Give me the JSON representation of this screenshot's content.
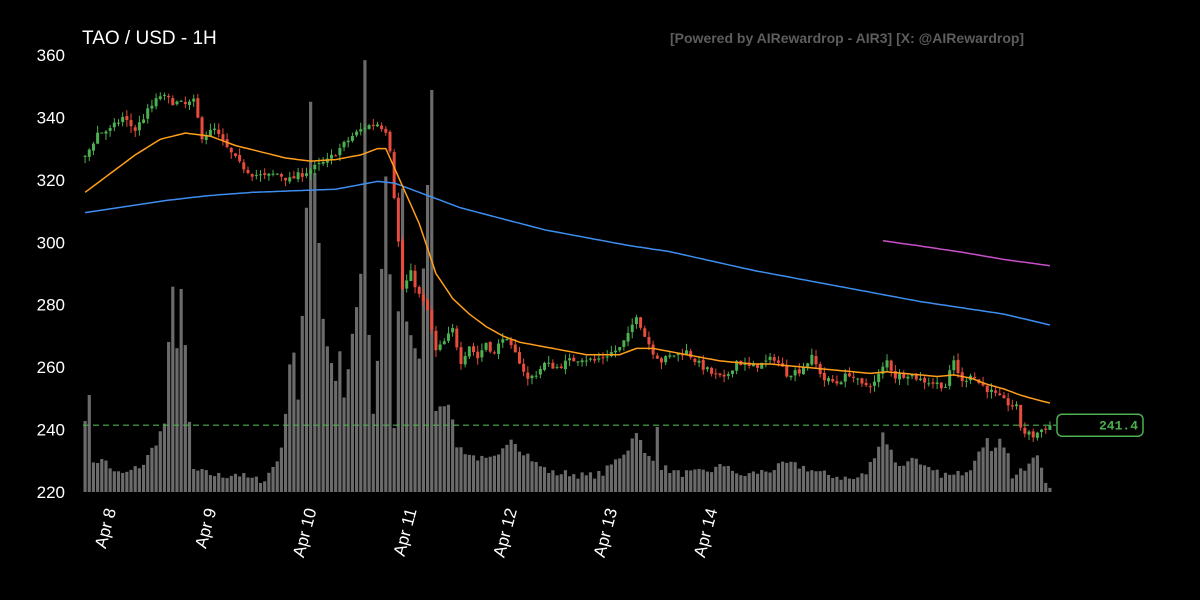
{
  "header": {
    "title": "TAO / USD - 1H",
    "credit": "[Powered by AIRewardrop - AIR3] [X: @AIRewardrop]"
  },
  "chart_data": {
    "type": "candlestick",
    "title": "TAO / USD - 1H",
    "ylim": [
      220,
      360
    ],
    "y_ticks": [
      220,
      240,
      260,
      280,
      300,
      320,
      340,
      360
    ],
    "x_ticks": [
      "Apr 8",
      "Apr 9",
      "Apr 10",
      "Apr 11",
      "Apr 12",
      "Apr 13",
      "Apr 14"
    ],
    "hours_total": 168,
    "current_price": 241.4,
    "current_price_label": "241.4",
    "colors": {
      "up": "#4caf50",
      "down": "#e74c3c",
      "volume": "#6b6b6b",
      "ema_fast": "#ff9f1c",
      "ema_slow": "#3d8ef0",
      "ema_long": "#c74fc7",
      "price_line": "#4caf50"
    },
    "price_anchors": [
      [
        0,
        327
      ],
      [
        3,
        335
      ],
      [
        6,
        336
      ],
      [
        9,
        340
      ],
      [
        12,
        336
      ],
      [
        15,
        342
      ],
      [
        18,
        347
      ],
      [
        21,
        345
      ],
      [
        24,
        344
      ],
      [
        26,
        345
      ],
      [
        28,
        334
      ],
      [
        31,
        336
      ],
      [
        34,
        330
      ],
      [
        37,
        325
      ],
      [
        40,
        322
      ],
      [
        43,
        321
      ],
      [
        46,
        322
      ],
      [
        49,
        320
      ],
      [
        52,
        322
      ],
      [
        55,
        324
      ],
      [
        58,
        326
      ],
      [
        61,
        330
      ],
      [
        64,
        334
      ],
      [
        67,
        337
      ],
      [
        70,
        338
      ],
      [
        72,
        336
      ],
      [
        73,
        330
      ],
      [
        74,
        315
      ],
      [
        75,
        300
      ],
      [
        76,
        285
      ],
      [
        78,
        290
      ],
      [
        80,
        283
      ],
      [
        82,
        278
      ],
      [
        84,
        265
      ],
      [
        86,
        268
      ],
      [
        88,
        272
      ],
      [
        90,
        262
      ],
      [
        92,
        267
      ],
      [
        94,
        263
      ],
      [
        96,
        268
      ],
      [
        98,
        264
      ],
      [
        100,
        270
      ],
      [
        102,
        266
      ],
      [
        104,
        262
      ],
      [
        106,
        256
      ],
      [
        108,
        258
      ],
      [
        110,
        261
      ],
      [
        113,
        260
      ],
      [
        116,
        262
      ],
      [
        119,
        263
      ],
      [
        122,
        262
      ],
      [
        125,
        264
      ],
      [
        128,
        266
      ],
      [
        130,
        270
      ],
      [
        132,
        277
      ],
      [
        134,
        270
      ],
      [
        136,
        265
      ],
      [
        138,
        262
      ],
      [
        141,
        264
      ],
      [
        144,
        265
      ],
      [
        147,
        261
      ],
      [
        150,
        258
      ],
      [
        153,
        256
      ],
      [
        156,
        262
      ],
      [
        159,
        260
      ],
      [
        162,
        261
      ],
      [
        165,
        263
      ],
      [
        168,
        258
      ],
      [
        171,
        259
      ],
      [
        174,
        263
      ],
      [
        177,
        256
      ],
      [
        180,
        255
      ],
      [
        183,
        258
      ],
      [
        186,
        254
      ],
      [
        189,
        255
      ],
      [
        192,
        262
      ],
      [
        194,
        257
      ],
      [
        197,
        258
      ],
      [
        200,
        256
      ],
      [
        203,
        255
      ],
      [
        206,
        254
      ],
      [
        208,
        262
      ],
      [
        210,
        255
      ],
      [
        212,
        258
      ],
      [
        214,
        255
      ],
      [
        217,
        252
      ],
      [
        220,
        249
      ],
      [
        223,
        247
      ],
      [
        224,
        241
      ],
      [
        225,
        239
      ],
      [
        227,
        238
      ],
      [
        229,
        240
      ],
      [
        231,
        241.4
      ]
    ],
    "volume_anchors": [
      [
        0,
        244
      ],
      [
        1,
        250
      ],
      [
        2,
        230
      ],
      [
        5,
        230
      ],
      [
        7,
        226
      ],
      [
        10,
        226
      ],
      [
        14,
        229
      ],
      [
        17,
        236
      ],
      [
        19,
        242
      ],
      [
        20,
        267
      ],
      [
        21,
        285
      ],
      [
        22,
        267
      ],
      [
        23,
        285
      ],
      [
        24,
        266
      ],
      [
        25,
        242
      ],
      [
        26,
        227
      ],
      [
        29,
        226
      ],
      [
        33,
        225
      ],
      [
        36,
        226
      ],
      [
        40,
        224
      ],
      [
        43,
        224
      ],
      [
        46,
        230
      ],
      [
        47,
        235
      ],
      [
        48,
        244
      ],
      [
        49,
        262
      ],
      [
        50,
        265
      ],
      [
        51,
        250
      ],
      [
        52,
        276
      ],
      [
        53,
        310
      ],
      [
        54,
        345
      ],
      [
        55,
        323
      ],
      [
        56,
        300
      ],
      [
        57,
        276
      ],
      [
        58,
        267
      ],
      [
        60,
        256
      ],
      [
        61,
        265
      ],
      [
        62,
        250
      ],
      [
        63,
        260
      ],
      [
        66,
        289
      ],
      [
        67,
        358
      ],
      [
        68,
        270
      ],
      [
        69,
        245
      ],
      [
        70,
        262
      ],
      [
        72,
        320
      ],
      [
        73,
        290
      ],
      [
        74,
        240
      ],
      [
        76,
        317
      ],
      [
        77,
        275
      ],
      [
        80,
        262
      ],
      [
        83,
        348
      ],
      [
        84,
        247
      ],
      [
        87,
        249
      ],
      [
        89,
        235
      ],
      [
        92,
        232
      ],
      [
        96,
        230
      ],
      [
        99,
        231
      ],
      [
        102,
        238
      ],
      [
        104,
        234
      ],
      [
        106,
        232
      ],
      [
        108,
        229
      ],
      [
        112,
        226
      ],
      [
        116,
        226
      ],
      [
        120,
        225
      ],
      [
        124,
        226
      ],
      [
        127,
        230
      ],
      [
        130,
        234
      ],
      [
        132,
        240
      ],
      [
        134,
        232
      ],
      [
        136,
        230
      ],
      [
        137,
        242
      ],
      [
        138,
        228
      ],
      [
        142,
        226
      ],
      [
        146,
        226
      ],
      [
        150,
        227
      ],
      [
        154,
        229
      ],
      [
        156,
        225
      ],
      [
        160,
        226
      ],
      [
        164,
        227
      ],
      [
        168,
        229
      ],
      [
        172,
        228
      ],
      [
        176,
        226
      ],
      [
        180,
        225
      ],
      [
        184,
        224
      ],
      [
        187,
        226
      ],
      [
        190,
        235
      ],
      [
        191,
        239
      ],
      [
        192,
        236
      ],
      [
        194,
        230
      ],
      [
        196,
        228
      ],
      [
        198,
        232
      ],
      [
        200,
        228
      ],
      [
        204,
        226
      ],
      [
        208,
        225
      ],
      [
        212,
        228
      ],
      [
        214,
        234
      ],
      [
        216,
        237
      ],
      [
        217,
        232
      ],
      [
        219,
        238
      ],
      [
        221,
        232
      ],
      [
        222,
        225
      ],
      [
        225,
        227
      ],
      [
        228,
        232
      ],
      [
        230,
        224
      ],
      [
        231,
        222
      ]
    ],
    "ema_fast_anchors": [
      [
        0,
        316
      ],
      [
        6,
        322
      ],
      [
        12,
        328
      ],
      [
        18,
        333
      ],
      [
        24,
        335
      ],
      [
        30,
        334
      ],
      [
        36,
        331
      ],
      [
        42,
        329
      ],
      [
        48,
        327
      ],
      [
        54,
        326
      ],
      [
        60,
        326.5
      ],
      [
        66,
        328
      ],
      [
        70,
        330
      ],
      [
        72,
        330
      ],
      [
        76,
        318
      ],
      [
        80,
        306
      ],
      [
        84,
        290
      ],
      [
        88,
        282
      ],
      [
        92,
        277
      ],
      [
        96,
        273
      ],
      [
        100,
        270
      ],
      [
        104,
        268
      ],
      [
        108,
        267
      ],
      [
        112,
        266
      ],
      [
        116,
        265
      ],
      [
        120,
        264
      ],
      [
        124,
        264
      ],
      [
        128,
        264
      ],
      [
        132,
        266
      ],
      [
        136,
        266
      ],
      [
        140,
        265
      ],
      [
        144,
        264
      ],
      [
        148,
        263
      ],
      [
        152,
        262
      ],
      [
        156,
        261.5
      ],
      [
        160,
        261
      ],
      [
        164,
        261
      ],
      [
        168,
        260.5
      ],
      [
        172,
        260
      ],
      [
        176,
        259.5
      ],
      [
        180,
        259
      ],
      [
        184,
        258.5
      ],
      [
        188,
        258
      ],
      [
        192,
        258.5
      ],
      [
        196,
        258
      ],
      [
        200,
        257.5
      ],
      [
        204,
        257
      ],
      [
        208,
        257.5
      ],
      [
        212,
        256.5
      ],
      [
        216,
        254.5
      ],
      [
        220,
        253
      ],
      [
        224,
        251
      ],
      [
        228,
        249.5
      ],
      [
        231,
        248.5
      ]
    ],
    "ema_slow_anchors": [
      [
        0,
        309.5
      ],
      [
        10,
        311.5
      ],
      [
        20,
        313.5
      ],
      [
        30,
        315
      ],
      [
        40,
        316
      ],
      [
        50,
        316.5
      ],
      [
        60,
        317
      ],
      [
        66,
        318.5
      ],
      [
        70,
        319.5
      ],
      [
        74,
        319
      ],
      [
        80,
        316
      ],
      [
        90,
        311
      ],
      [
        100,
        307.5
      ],
      [
        110,
        304
      ],
      [
        120,
        301.5
      ],
      [
        130,
        299
      ],
      [
        140,
        297
      ],
      [
        150,
        294
      ],
      [
        160,
        291
      ],
      [
        170,
        288.5
      ],
      [
        180,
        286
      ],
      [
        190,
        283.5
      ],
      [
        200,
        281
      ],
      [
        210,
        279
      ],
      [
        220,
        277
      ],
      [
        231,
        273.5
      ]
    ],
    "ema_long_anchors": [
      [
        191,
        300.5
      ],
      [
        200,
        298.8
      ],
      [
        210,
        296.8
      ],
      [
        220,
        294.5
      ],
      [
        231,
        292.5
      ]
    ]
  }
}
